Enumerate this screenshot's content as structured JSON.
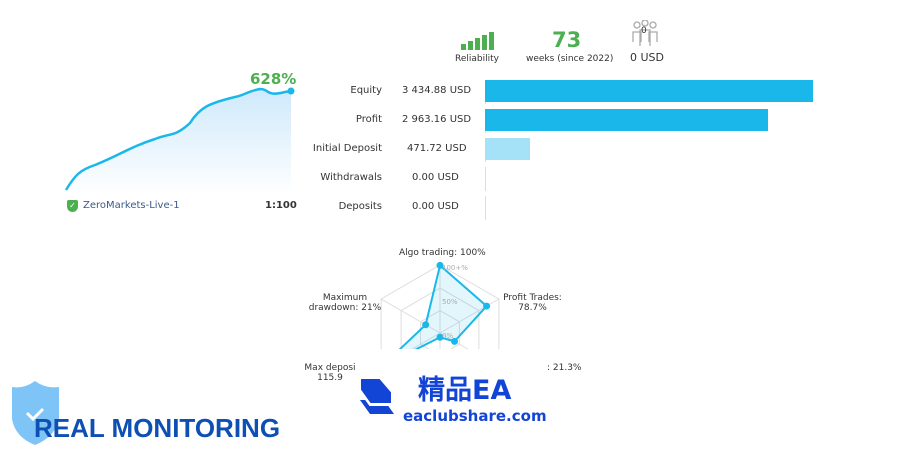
{
  "stats": {
    "reliability_label": "Reliability",
    "reliability_level": 5,
    "weeks_value": "73",
    "weeks_label": "weeks (since 2022)",
    "subscribers_count": "0",
    "subscribers_usd": "0 USD"
  },
  "growth": {
    "percent": "628%",
    "server": "ZeroMarkets-Live-1",
    "leverage": "1:100"
  },
  "balances": {
    "scale_max": 3434.88,
    "rows": [
      {
        "label": "Equity",
        "value": "3 434.88 USD",
        "amount": 3434.88,
        "color": "#1ab7ea"
      },
      {
        "label": "Profit",
        "value": "2 963.16 USD",
        "amount": 2963.16,
        "color": "#1ab7ea"
      },
      {
        "label": "Initial Deposit",
        "value": "471.72 USD",
        "amount": 471.72,
        "color": "#a5e2f7"
      },
      {
        "label": "Withdrawals",
        "value": "0.00 USD",
        "amount": 0,
        "color": "#1ab7ea"
      },
      {
        "label": "Deposits",
        "value": "0.00 USD",
        "amount": 0,
        "color": "#1ab7ea"
      }
    ]
  },
  "radar": {
    "algo": "Algo trading: 100%",
    "profit_trades_1": "Profit Trades:",
    "profit_trades_2": "78.7%",
    "max_dd_1": "Maximum",
    "max_dd_2": "drawdown: 21%",
    "max_dep_1": "Max deposi",
    "max_dep_2": "115.9",
    "right_partial": ": 21.3%",
    "ticks": [
      "100+%",
      "50%",
      "0%"
    ],
    "values": {
      "algo": 100,
      "profit_trades": 78.7,
      "activity": 21.3,
      "bottom": 2,
      "max_deposit_load": 115.9,
      "max_drawdown": 21
    }
  },
  "watermark": {
    "title": "精品EA",
    "site": "eaclubshare.com"
  },
  "banner": {
    "text": "REAL MONITORING"
  },
  "colors": {
    "green": "#4caf50",
    "blue": "#1ab7ea",
    "navy": "#0d4fb3"
  }
}
